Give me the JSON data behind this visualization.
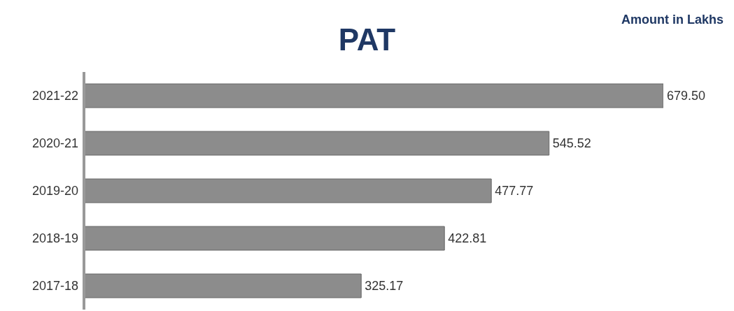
{
  "chart_data": {
    "type": "bar",
    "orientation": "horizontal",
    "title": "PAT",
    "subtitle": "Amount in Lakhs",
    "categories": [
      "2021-22",
      "2020-21",
      "2019-20",
      "2018-19",
      "2017-18"
    ],
    "values": [
      679.5,
      545.52,
      477.77,
      422.81,
      325.17
    ],
    "value_labels": [
      "679.50",
      "545.52",
      "477.77",
      "422.81",
      "325.17"
    ],
    "color": "#8c8c8c",
    "grid": false,
    "legend": false
  }
}
